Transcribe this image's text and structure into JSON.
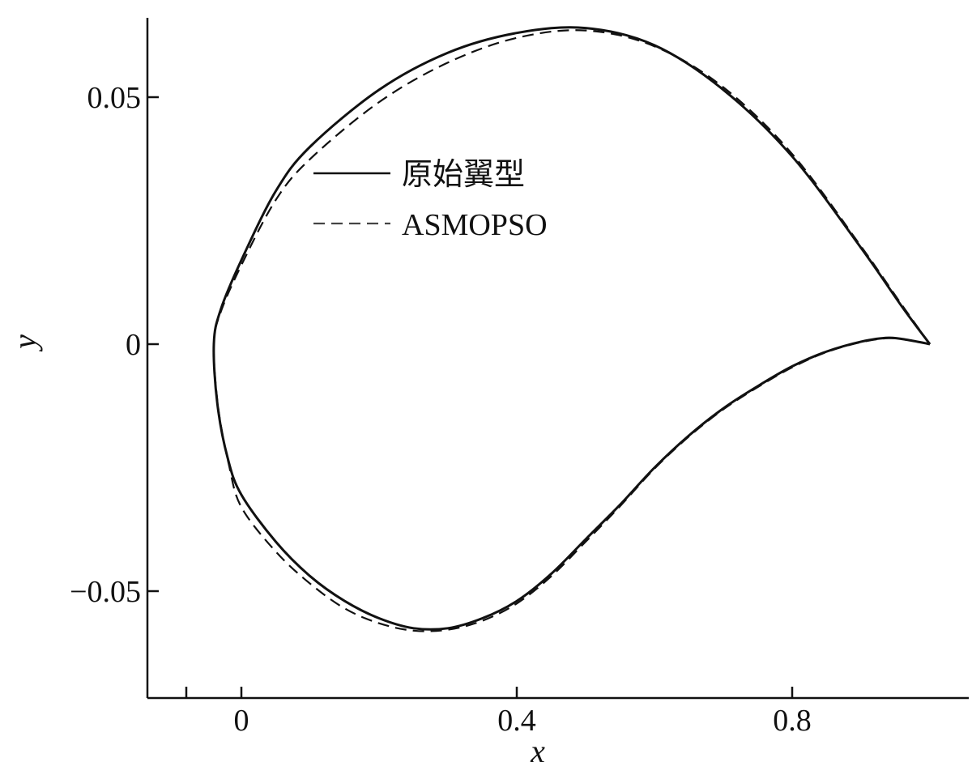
{
  "chart_data": {
    "type": "line",
    "title": "",
    "xlabel": "x",
    "ylabel": "y",
    "xlim": [
      -0.06,
      1.08
    ],
    "ylim": [
      -0.057,
      0.066
    ],
    "xticks": [
      0,
      0.4,
      0.8
    ],
    "xtick_labels": [
      "0",
      "0.4",
      "0.8"
    ],
    "yticks": [
      -0.05,
      0,
      0.05
    ],
    "ytick_labels": [
      "−0.05",
      "0",
      "0.05"
    ],
    "grid": false,
    "legend_position": "upper-left-inside",
    "series": [
      {
        "name": "原始翼型",
        "style": "solid",
        "color": "#111111",
        "points": [
          [
            1.0,
            0.0
          ],
          [
            0.96,
            0.0075
          ],
          [
            0.9,
            0.0195
          ],
          [
            0.8,
            0.038
          ],
          [
            0.7,
            0.0515
          ],
          [
            0.6,
            0.0605
          ],
          [
            0.5,
            0.064
          ],
          [
            0.4,
            0.063
          ],
          [
            0.3,
            0.059
          ],
          [
            0.2,
            0.0515
          ],
          [
            0.1,
            0.04
          ],
          [
            0.05,
            0.031
          ],
          [
            0.0,
            0.017
          ],
          [
            -0.03,
            0.007
          ],
          [
            -0.04,
            0.0
          ],
          [
            -0.035,
            -0.012
          ],
          [
            -0.02,
            -0.023
          ],
          [
            0.0,
            -0.0305
          ],
          [
            0.05,
            -0.04
          ],
          [
            0.1,
            -0.047
          ],
          [
            0.15,
            -0.052
          ],
          [
            0.2,
            -0.0555
          ],
          [
            0.25,
            -0.0575
          ],
          [
            0.3,
            -0.0575
          ],
          [
            0.35,
            -0.0555
          ],
          [
            0.4,
            -0.052
          ],
          [
            0.45,
            -0.0465
          ],
          [
            0.5,
            -0.0395
          ],
          [
            0.55,
            -0.0325
          ],
          [
            0.6,
            -0.025
          ],
          [
            0.65,
            -0.0185
          ],
          [
            0.7,
            -0.013
          ],
          [
            0.75,
            -0.0085
          ],
          [
            0.8,
            -0.0045
          ],
          [
            0.85,
            -0.0015
          ],
          [
            0.9,
            0.0005
          ],
          [
            0.94,
            0.0013
          ],
          [
            0.97,
            0.0008
          ],
          [
            1.0,
            0.0
          ]
        ]
      },
      {
        "name": "ASMOPSO",
        "style": "dashed",
        "color": "#444444",
        "points": [
          [
            1.0,
            0.0
          ],
          [
            0.96,
            0.0078
          ],
          [
            0.9,
            0.0198
          ],
          [
            0.8,
            0.0385
          ],
          [
            0.7,
            0.052
          ],
          [
            0.6,
            0.0603
          ],
          [
            0.5,
            0.0635
          ],
          [
            0.4,
            0.062
          ],
          [
            0.3,
            0.057
          ],
          [
            0.2,
            0.049
          ],
          [
            0.1,
            0.0375
          ],
          [
            0.05,
            0.0292
          ],
          [
            0.0,
            0.016
          ],
          [
            -0.03,
            0.0065
          ],
          [
            -0.04,
            0.0
          ],
          [
            -0.034,
            -0.0125
          ],
          [
            -0.018,
            -0.0245
          ],
          [
            0.0,
            -0.033
          ],
          [
            0.05,
            -0.042
          ],
          [
            0.1,
            -0.0485
          ],
          [
            0.15,
            -0.0535
          ],
          [
            0.2,
            -0.0565
          ],
          [
            0.25,
            -0.058
          ],
          [
            0.3,
            -0.0578
          ],
          [
            0.35,
            -0.056
          ],
          [
            0.4,
            -0.0525
          ],
          [
            0.45,
            -0.047
          ],
          [
            0.5,
            -0.04
          ],
          [
            0.55,
            -0.0328
          ],
          [
            0.6,
            -0.0252
          ],
          [
            0.65,
            -0.0187
          ],
          [
            0.7,
            -0.0132
          ],
          [
            0.75,
            -0.0087
          ],
          [
            0.8,
            -0.0047
          ],
          [
            0.85,
            -0.0016
          ],
          [
            0.9,
            0.0004
          ],
          [
            0.94,
            0.0012
          ],
          [
            0.97,
            0.0008
          ],
          [
            1.0,
            0.0
          ]
        ]
      }
    ]
  }
}
